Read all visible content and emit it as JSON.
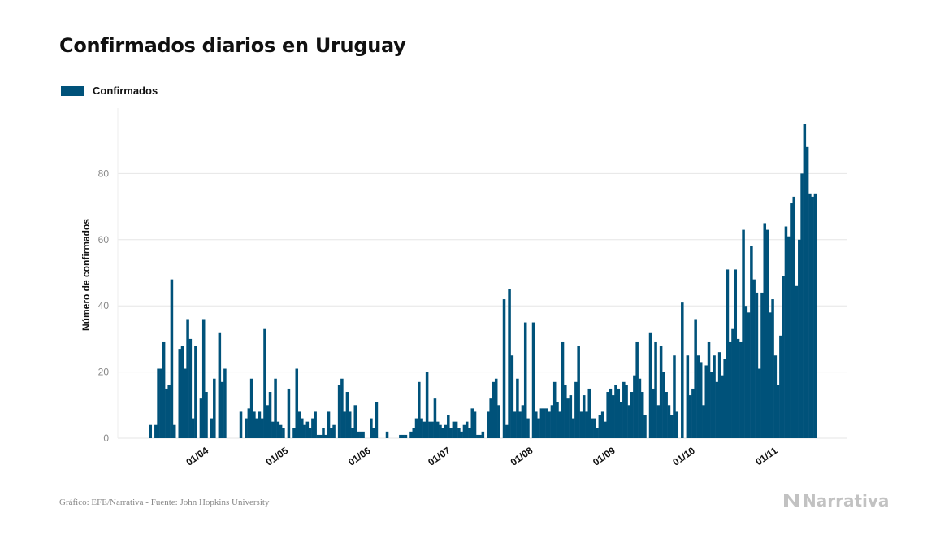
{
  "title": "Confirmados diarios en Uruguay",
  "legend": {
    "label": "Confirmados",
    "color": "#00527a"
  },
  "footer": "Gráfico: EFE/Narrativa - Fuente: John Hopkins University",
  "brand": {
    "name": "Narrativa",
    "icon": "narrativa-logo-icon"
  },
  "colors": {
    "bar": "#00527a",
    "grid": "#e6e6e6",
    "tick_text": "#888888"
  },
  "chart_data": {
    "type": "bar",
    "ylabel": "Número de confirmados",
    "ylim": [
      0,
      95
    ],
    "yticks": [
      0,
      20,
      40,
      60,
      80
    ],
    "grid": true,
    "legend_position": "top-left",
    "x_start": "2020-03-13",
    "x_end": "2020-11-20",
    "xticks": [
      {
        "date": "2020-04-01",
        "label": "01/04"
      },
      {
        "date": "2020-05-01",
        "label": "01/05"
      },
      {
        "date": "2020-06-01",
        "label": "01/06"
      },
      {
        "date": "2020-07-01",
        "label": "01/07"
      },
      {
        "date": "2020-08-01",
        "label": "01/08"
      },
      {
        "date": "2020-09-01",
        "label": "01/09"
      },
      {
        "date": "2020-10-01",
        "label": "01/10"
      },
      {
        "date": "2020-11-01",
        "label": "01/11"
      }
    ],
    "series": [
      {
        "name": "Confirmados",
        "values": [
          4,
          0,
          4,
          21,
          21,
          29,
          15,
          16,
          48,
          4,
          0,
          27,
          28,
          21,
          36,
          30,
          6,
          28,
          0,
          12,
          36,
          14,
          0,
          6,
          18,
          0,
          32,
          17,
          21,
          0,
          0,
          0,
          0,
          0,
          8,
          0,
          6,
          9,
          18,
          8,
          6,
          8,
          6,
          33,
          10,
          14,
          5,
          18,
          5,
          4,
          3,
          0,
          15,
          0,
          3,
          21,
          8,
          6,
          4,
          5,
          3,
          6,
          8,
          1,
          1,
          3,
          1,
          8,
          3,
          4,
          0,
          16,
          18,
          8,
          14,
          8,
          3,
          10,
          2,
          2,
          2,
          0,
          0,
          6,
          3,
          11,
          0,
          0,
          0,
          2,
          0,
          0,
          0,
          0,
          1,
          1,
          1,
          0,
          2,
          3,
          6,
          17,
          6,
          5,
          20,
          5,
          5,
          12,
          5,
          4,
          3,
          4,
          7,
          3,
          5,
          5,
          3,
          2,
          4,
          5,
          3,
          9,
          8,
          1,
          1,
          2,
          0,
          8,
          12,
          17,
          18,
          10,
          0,
          42,
          4,
          45,
          25,
          8,
          18,
          8,
          10,
          35,
          6,
          0,
          35,
          8,
          6,
          9,
          9,
          9,
          8,
          10,
          17,
          11,
          8,
          29,
          16,
          12,
          13,
          6,
          17,
          28,
          8,
          13,
          8,
          15,
          6,
          6,
          3,
          7,
          8,
          5,
          14,
          15,
          13,
          16,
          15,
          11,
          17,
          16,
          10,
          14,
          19,
          29,
          18,
          14,
          7,
          0,
          32,
          15,
          29,
          10,
          28,
          20,
          14,
          10,
          7,
          25,
          8,
          0,
          41,
          0,
          25,
          13,
          15,
          36,
          25,
          23,
          10,
          22,
          29,
          20,
          25,
          17,
          26,
          19,
          24,
          51,
          29,
          33,
          51,
          30,
          29,
          63,
          40,
          38,
          58,
          48,
          44,
          21,
          44,
          65,
          63,
          38,
          42,
          25,
          16,
          31,
          49,
          64,
          61,
          71,
          73,
          46,
          60,
          80,
          95,
          88,
          74,
          73,
          74
        ]
      }
    ]
  }
}
